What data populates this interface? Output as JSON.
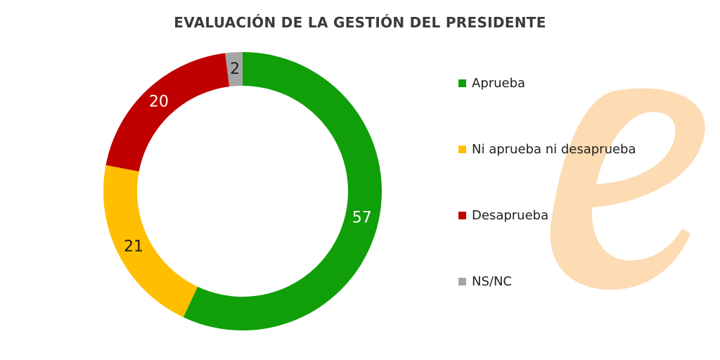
{
  "title": "EVALUACIÓN DE LA GESTIÓN DEL PRESIDENTE",
  "watermark_logo": {
    "letter": "e",
    "color": "#FDDBB3"
  },
  "chart_data": {
    "type": "pie",
    "donut": true,
    "start_angle_deg": 0,
    "direction": "clockwise",
    "categories": [
      "Aprueba",
      "Ni aprueba ni desaprueba",
      "Desaprueba",
      "NS/NC"
    ],
    "values": [
      57,
      21,
      20,
      2
    ],
    "colors": [
      "#109E09",
      "#FFBF00",
      "#C00000",
      "#A6A6A6"
    ],
    "label_colors": [
      "#FFFFFF",
      "#1E1E1E",
      "#FFFFFF",
      "#1E1E1E"
    ],
    "title": "EVALUACIÓN DE LA GESTIÓN DEL PRESIDENTE",
    "legend_position": "right"
  }
}
